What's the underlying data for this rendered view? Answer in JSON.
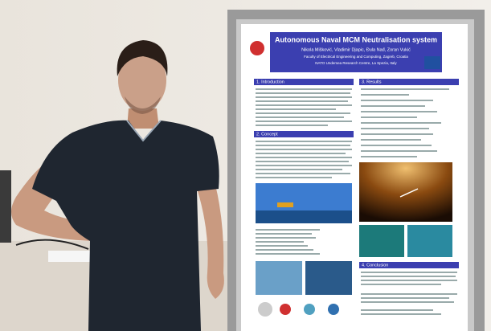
{
  "poster": {
    "title": "Autonomous Naval MCM Neutralisation system",
    "authors": "Nikola Mišković, Vladimir Djapic, Đula Nađ, Zoran Vukić",
    "affiliations": [
      "Faculty of Electrical Engineering and Computing, Zagreb, Croatia",
      "NATO Undersea Research Centre, La Spezia, Italy"
    ],
    "sections": [
      "1. Introduction",
      "2. Concept",
      "3. Results",
      "4. Conclusion"
    ]
  }
}
